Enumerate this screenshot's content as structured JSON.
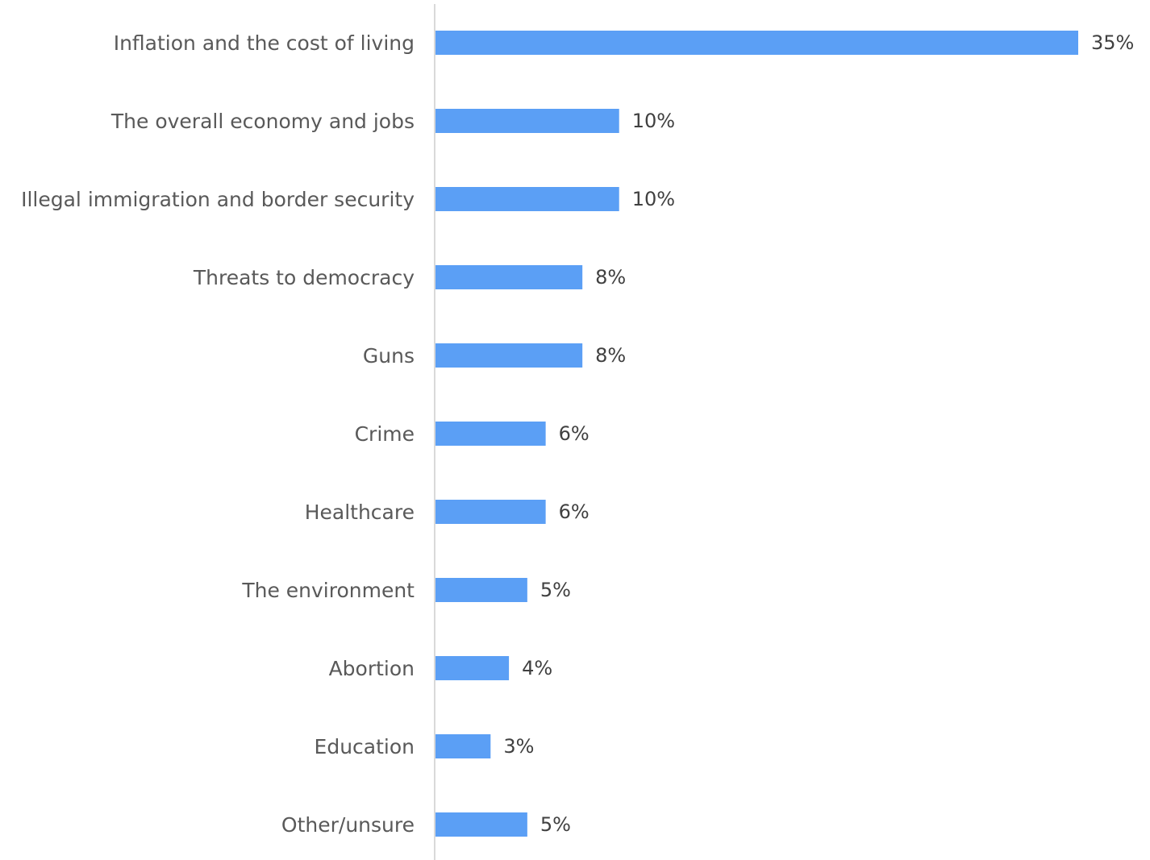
{
  "chart_data": {
    "type": "bar",
    "orientation": "horizontal",
    "categories": [
      "Inflation and the cost of living",
      "The overall economy and jobs",
      "Illegal immigration and border security",
      "Threats to democracy",
      "Guns",
      "Crime",
      "Healthcare",
      "The environment",
      "Abortion",
      "Education",
      "Other/unsure"
    ],
    "values": [
      35,
      10,
      10,
      8,
      8,
      6,
      6,
      5,
      4,
      3,
      5
    ],
    "value_labels": [
      "35%",
      "10%",
      "10%",
      "8%",
      "8%",
      "6%",
      "6%",
      "5%",
      "4%",
      "3%",
      "5%"
    ],
    "unit": "%",
    "xlim": [
      0,
      35
    ],
    "grid": false,
    "legend": "none",
    "bar_color": "#5B9FF5",
    "axis_color": "#D9D9D9"
  }
}
